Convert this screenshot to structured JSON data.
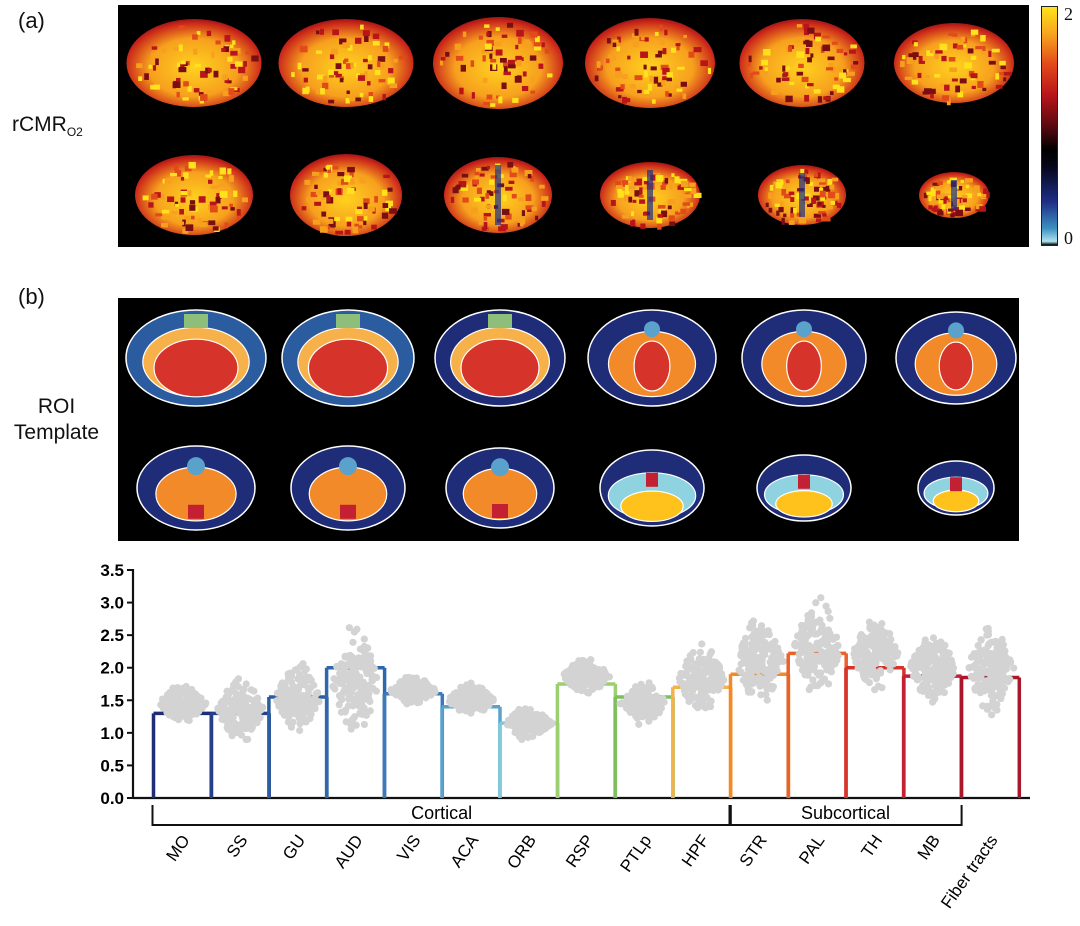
{
  "panel_a": {
    "label": "(a)",
    "row_label": "rCMR",
    "row_label_sub": "O2",
    "colorbar_max": "2",
    "colorbar_min": "0"
  },
  "panel_b": {
    "label": "(b)",
    "row_label_line1": "ROI",
    "row_label_line2": "Template"
  },
  "colors": {
    "MO": "#1f2c78",
    "SS": "#24408d",
    "GU": "#2b5c9f",
    "AUD": "#2f67aa",
    "VIS": "#3c79b8",
    "ACA": "#5aa2cc",
    "ORB": "#82c8d6",
    "RSP": "#9ccf72",
    "PTLp": "#7cbf5f",
    "HPF": "#f6b14a",
    "STR": "#f28a2a",
    "PAL": "#e8622a",
    "TH": "#d6332a",
    "MB": "#c42033",
    "Fiber tracts": "#a8172a",
    "scatter": "#d3d3d3"
  },
  "chart_data": {
    "type": "bar",
    "categories": [
      "MO",
      "SS",
      "GU",
      "AUD",
      "VIS",
      "ACA",
      "ORB",
      "RSP",
      "PTLp",
      "HPF",
      "STR",
      "PAL",
      "TH",
      "MB",
      "Fiber tracts"
    ],
    "values": [
      1.3,
      1.3,
      1.55,
      2.0,
      1.6,
      1.4,
      1.15,
      1.75,
      1.55,
      1.7,
      1.9,
      2.22,
      2.0,
      1.87,
      1.85
    ],
    "scatter_ranges": [
      [
        1.1,
        1.8
      ],
      [
        0.75,
        1.95
      ],
      [
        0.95,
        2.15
      ],
      [
        0.8,
        2.75
      ],
      [
        1.4,
        1.9
      ],
      [
        1.2,
        1.8
      ],
      [
        0.85,
        1.45
      ],
      [
        1.55,
        2.2
      ],
      [
        1.1,
        1.8
      ],
      [
        1.2,
        2.45
      ],
      [
        1.3,
        2.9
      ],
      [
        1.4,
        3.2
      ],
      [
        1.55,
        2.9
      ],
      [
        1.35,
        2.65
      ],
      [
        1.15,
        2.8
      ]
    ],
    "ylim": [
      0,
      3.5
    ],
    "yticks": [
      "0.0",
      "0.5",
      "1.0",
      "1.5",
      "2.0",
      "2.5",
      "3.0",
      "3.5"
    ],
    "groups": [
      {
        "label": "Cortical",
        "from": 0,
        "to": 9
      },
      {
        "label": "Subcortical",
        "from": 10,
        "to": 13
      }
    ],
    "xlabel": "",
    "ylabel": "",
    "title": ""
  }
}
